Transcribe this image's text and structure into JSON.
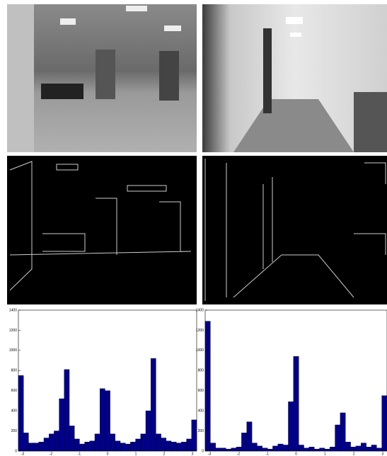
{
  "chart_data": [
    {
      "type": "histogram",
      "color": "#00008b",
      "bins": [
        -3.15,
        -2.97,
        -2.79,
        -2.61,
        -2.43,
        -2.25,
        -2.07,
        -1.89,
        -1.71,
        -1.53,
        -1.35,
        -1.17,
        -0.99,
        -0.81,
        -0.63,
        -0.45,
        -0.27,
        -0.09,
        0.09,
        0.27,
        0.45,
        0.63,
        0.81,
        0.99,
        1.17,
        1.35,
        1.53,
        1.71,
        1.89,
        2.07,
        2.25,
        2.43,
        2.61,
        2.79,
        2.97,
        3.15
      ],
      "values": [
        750,
        180,
        80,
        80,
        90,
        130,
        170,
        200,
        520,
        810,
        250,
        120,
        70,
        90,
        100,
        170,
        620,
        600,
        170,
        100,
        80,
        70,
        90,
        120,
        170,
        400,
        920,
        170,
        130,
        100,
        90,
        80,
        90,
        120,
        310
      ],
      "xlim": [
        -3.15,
        3.15
      ],
      "ylim": [
        0,
        1400
      ],
      "xticks": [
        -3,
        -2,
        -1,
        0,
        1,
        2,
        3
      ],
      "yticks": [
        0,
        200,
        400,
        600,
        800,
        1000,
        1200,
        1400
      ]
    },
    {
      "type": "histogram",
      "color": "#00008b",
      "bins": [
        -3.15,
        -2.97,
        -2.79,
        -2.61,
        -2.43,
        -2.25,
        -2.07,
        -1.89,
        -1.71,
        -1.53,
        -1.35,
        -1.17,
        -0.99,
        -0.81,
        -0.63,
        -0.45,
        -0.27,
        -0.09,
        0.09,
        0.27,
        0.45,
        0.63,
        0.81,
        0.99,
        1.17,
        1.35,
        1.53,
        1.71,
        1.89,
        2.07,
        2.25,
        2.43,
        2.61,
        2.79,
        2.97,
        3.15
      ],
      "values": [
        1290,
        80,
        30,
        30,
        20,
        30,
        40,
        180,
        290,
        80,
        50,
        30,
        20,
        50,
        70,
        60,
        490,
        940,
        60,
        30,
        40,
        20,
        30,
        20,
        40,
        260,
        380,
        90,
        40,
        50,
        80,
        40,
        60,
        30,
        550
      ],
      "xlim": [
        -3.15,
        3.15
      ],
      "ylim": [
        0,
        1400
      ],
      "xticks": [
        -3,
        -2,
        -1,
        0,
        1,
        2,
        3
      ],
      "yticks": [
        0,
        200,
        400,
        600,
        800,
        1000,
        1200,
        1400
      ]
    }
  ]
}
